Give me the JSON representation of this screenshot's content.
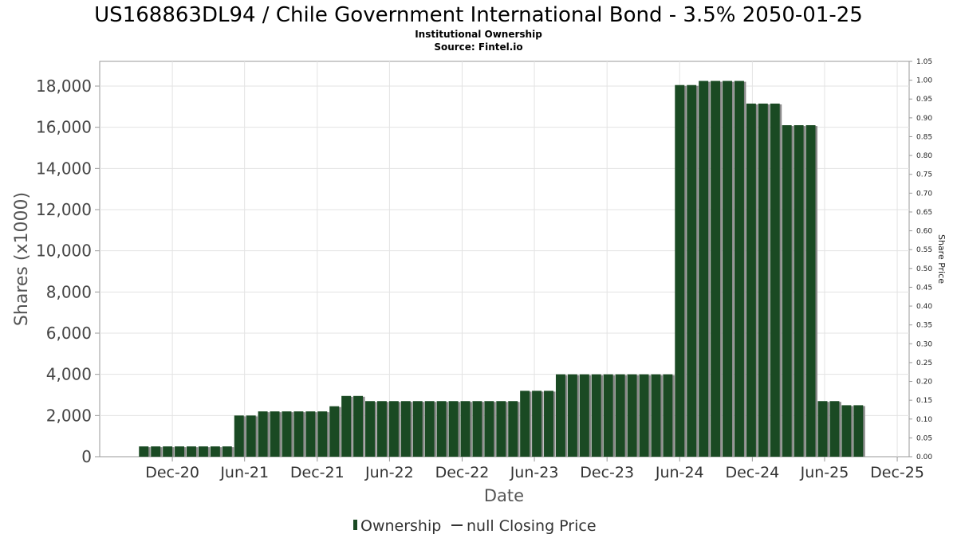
{
  "chart_data": {
    "type": "bar",
    "title": "US168863DL94 / Chile Government International Bond - 3.5% 2050-01-25",
    "subtitle_line1": "Institutional Ownership",
    "subtitle_line2": "Source: Fintel.io",
    "xlabel": "Date",
    "ylabel": "Shares (x1000)",
    "y2label": "Share Price",
    "ylim": [
      0,
      19200
    ],
    "y2lim": [
      0,
      1.05
    ],
    "yticks": [
      0,
      2000,
      4000,
      6000,
      8000,
      10000,
      12000,
      14000,
      16000,
      18000
    ],
    "ytick_labels": [
      "0",
      "2,000",
      "4,000",
      "6,000",
      "8,000",
      "10,000",
      "12,000",
      "14,000",
      "16,000",
      "18,000"
    ],
    "y2ticks": [
      "0.00",
      "0.05",
      "0.10",
      "0.15",
      "0.20",
      "0.25",
      "0.30",
      "0.35",
      "0.40",
      "0.45",
      "0.50",
      "0.55",
      "0.60",
      "0.65",
      "0.70",
      "0.75",
      "0.80",
      "0.85",
      "0.90",
      "0.95",
      "1.00",
      "1.05"
    ],
    "xlim": [
      "2020-06-01",
      "2025-12-31"
    ],
    "xticks": [
      {
        "date": "2020-12-01",
        "label": "Dec-20"
      },
      {
        "date": "2021-06-01",
        "label": "Jun-21"
      },
      {
        "date": "2021-12-01",
        "label": "Dec-21"
      },
      {
        "date": "2022-06-01",
        "label": "Jun-22"
      },
      {
        "date": "2022-12-01",
        "label": "Dec-22"
      },
      {
        "date": "2023-06-01",
        "label": "Jun-23"
      },
      {
        "date": "2023-12-01",
        "label": "Dec-23"
      },
      {
        "date": "2024-06-01",
        "label": "Jun-24"
      },
      {
        "date": "2024-12-01",
        "label": "Dec-24"
      },
      {
        "date": "2025-06-01",
        "label": "Jun-25"
      },
      {
        "date": "2025-12-01",
        "label": "Dec-25"
      }
    ],
    "grid": true,
    "legend_position": "bottom-center",
    "series": [
      {
        "name": "Ownership",
        "color": "#1a4a23",
        "x": [
          "2020-09-20",
          "2020-10-20",
          "2020-11-19",
          "2020-12-19",
          "2021-01-18",
          "2021-02-17",
          "2021-03-19",
          "2021-04-18",
          "2021-05-18",
          "2021-06-17",
          "2021-07-17",
          "2021-08-16",
          "2021-09-15",
          "2021-10-15",
          "2021-11-14",
          "2021-12-14",
          "2022-01-13",
          "2022-02-12",
          "2022-03-14",
          "2022-04-13",
          "2022-05-13",
          "2022-06-12",
          "2022-07-12",
          "2022-08-11",
          "2022-09-10",
          "2022-10-10",
          "2022-11-09",
          "2022-12-09",
          "2023-01-08",
          "2023-02-07",
          "2023-03-09",
          "2023-04-08",
          "2023-05-08",
          "2023-06-07",
          "2023-07-07",
          "2023-08-06",
          "2023-09-05",
          "2023-10-05",
          "2023-11-04",
          "2023-12-04",
          "2024-01-03",
          "2024-02-02",
          "2024-03-03",
          "2024-04-02",
          "2024-05-02",
          "2024-06-01",
          "2024-07-01",
          "2024-07-31",
          "2024-08-30",
          "2024-09-29",
          "2024-10-29",
          "2024-11-28",
          "2024-12-28",
          "2025-01-27",
          "2025-02-26",
          "2025-03-28",
          "2025-04-27",
          "2025-05-27",
          "2025-06-26",
          "2025-07-26",
          "2025-08-25"
        ],
        "values": [
          500,
          500,
          500,
          500,
          500,
          500,
          500,
          500,
          2000,
          2000,
          2200,
          2200,
          2200,
          2200,
          2200,
          2200,
          2450,
          2950,
          2950,
          2700,
          2700,
          2700,
          2700,
          2700,
          2700,
          2700,
          2700,
          2700,
          2700,
          2700,
          2700,
          2700,
          3200,
          3200,
          3200,
          4000,
          4000,
          4000,
          4000,
          4000,
          4000,
          4000,
          4000,
          4000,
          4000,
          18050,
          18050,
          18250,
          18250,
          18250,
          18250,
          17150,
          17150,
          17150,
          16100,
          16100,
          16100,
          2700,
          2700,
          2500,
          2500
        ]
      },
      {
        "name": "null Closing Price",
        "color": "#333333",
        "values": []
      }
    ]
  }
}
